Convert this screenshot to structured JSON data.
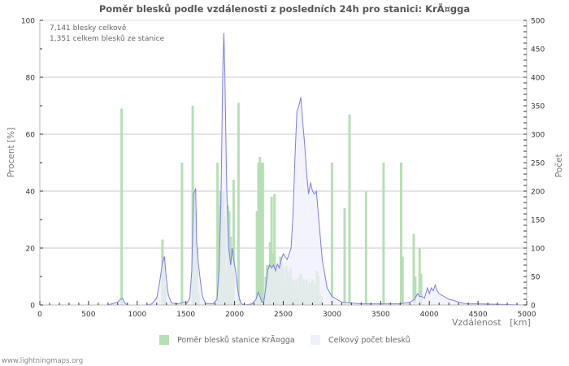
{
  "title": "Poměr blesků podle vzdálenosti z posledních 24h pro stanici: KrÃ¤gga",
  "info": {
    "line1": "7,141 blesky celkově",
    "line2": "1,351 celkem blesků ze stanice"
  },
  "axes": {
    "left_label": "Procent   [%]",
    "right_label": "Počet",
    "x_label": "Vzdálenost   [km]"
  },
  "legend": {
    "series1_label": "Poměr blesků stanice KrÃ¤gga",
    "series2_label": "Celkový počet blesků"
  },
  "footer": "www.lightningmaps.org",
  "colors": {
    "bar": "#b5e0b5",
    "bar_overlap": "#a3d0b0",
    "area_fill": "#efeffc",
    "area_line": "#7b7bea",
    "grid": "#c8c8c8",
    "title": "#555555"
  },
  "chart_data": {
    "type": "bar+area",
    "title": "Poměr blesků podle vzdálenosti z posledních 24h pro stanici: KrÃ¤gga",
    "xlabel": "Vzdálenost [km]",
    "ylabel_left": "Procent [%]",
    "ylabel_right": "Počet",
    "xlim": [
      0,
      5000
    ],
    "ylim_left": [
      0,
      100
    ],
    "ylim_right": [
      0,
      500
    ],
    "x_ticks": [
      0,
      500,
      1000,
      1500,
      2000,
      2500,
      3000,
      3500,
      4000,
      4500,
      5000
    ],
    "y_left_ticks": [
      0,
      20,
      40,
      60,
      80,
      100
    ],
    "y_right_ticks": [
      0,
      50,
      100,
      150,
      200,
      250,
      300,
      350,
      400,
      450,
      500
    ],
    "grid": true,
    "legend_position": "bottom",
    "series": [
      {
        "name": "Poměr blesků stanice KrÃ¤gga",
        "axis": "left",
        "kind": "bar",
        "x": [
          840,
          1260,
          1275,
          1290,
          1460,
          1570,
          1585,
          1600,
          1615,
          1630,
          1825,
          1840,
          1855,
          1870,
          1885,
          1900,
          1915,
          1930,
          1945,
          1960,
          1975,
          1990,
          2040,
          2055,
          2230,
          2245,
          2260,
          2275,
          2290,
          2320,
          2335,
          2350,
          2365,
          2380,
          2395,
          2410,
          2425,
          2440,
          2455,
          2470,
          2485,
          2500,
          2515,
          2530,
          2545,
          2560,
          2575,
          2590,
          2605,
          2620,
          2635,
          2650,
          2665,
          2680,
          2695,
          2710,
          2725,
          2740,
          2755,
          2770,
          2785,
          2800,
          2815,
          2830,
          2845,
          2860,
          2875,
          2890,
          3000,
          3130,
          3180,
          3350,
          3530,
          3710,
          3725,
          3840,
          3855,
          3900,
          3915
        ],
        "values": [
          69,
          23,
          17,
          7,
          50,
          70,
          40,
          33,
          20,
          4,
          50,
          35,
          40,
          37,
          40,
          31,
          12,
          35,
          33,
          24,
          20,
          44,
          71,
          2,
          33,
          50,
          52,
          50,
          50,
          10,
          14,
          14,
          22,
          38,
          18,
          39,
          13,
          14,
          11,
          17,
          15,
          13,
          8,
          14,
          12,
          10,
          13,
          7,
          9,
          6,
          9,
          5,
          10,
          11,
          8,
          9,
          6,
          9,
          5,
          8,
          7,
          9,
          8,
          7,
          12,
          10,
          4,
          3,
          50,
          34,
          67,
          40,
          50,
          50,
          17,
          25,
          10,
          20,
          11
        ]
      },
      {
        "name": "Celkový počet blesků",
        "axis": "right",
        "kind": "area",
        "x": [
          0,
          700,
          760,
          800,
          830,
          850,
          870,
          900,
          1100,
          1150,
          1200,
          1230,
          1260,
          1280,
          1300,
          1320,
          1350,
          1400,
          1450,
          1480,
          1510,
          1540,
          1560,
          1580,
          1600,
          1610,
          1630,
          1650,
          1670,
          1700,
          1780,
          1820,
          1840,
          1860,
          1870,
          1880,
          1890,
          1900,
          1910,
          1920,
          1940,
          1960,
          1975,
          1990,
          2010,
          2030,
          2050,
          2070,
          2100,
          2180,
          2220,
          2240,
          2260,
          2280,
          2300,
          2320,
          2340,
          2360,
          2380,
          2400,
          2420,
          2440,
          2460,
          2480,
          2500,
          2520,
          2540,
          2560,
          2580,
          2600,
          2620,
          2640,
          2660,
          2680,
          2700,
          2720,
          2740,
          2760,
          2780,
          2800,
          2820,
          2840,
          2860,
          2880,
          2900,
          2920,
          2950,
          3000,
          3100,
          3300,
          3500,
          3700,
          3800,
          3850,
          3880,
          3900,
          3920,
          3950,
          3980,
          4000,
          4020,
          4040,
          4060,
          4080,
          4100,
          4150,
          4200,
          4250,
          4300,
          4350,
          4400,
          4500,
          5000
        ],
        "values": [
          0,
          0,
          3,
          5,
          10,
          12,
          4,
          0,
          0,
          2,
          12,
          40,
          75,
          85,
          45,
          18,
          4,
          2,
          3,
          5,
          3,
          12,
          60,
          195,
          205,
          110,
          70,
          40,
          15,
          3,
          2,
          10,
          60,
          180,
          300,
          420,
          478,
          410,
          300,
          200,
          100,
          70,
          100,
          80,
          60,
          30,
          10,
          2,
          0,
          2,
          10,
          22,
          15,
          5,
          5,
          30,
          60,
          70,
          65,
          70,
          60,
          72,
          65,
          80,
          90,
          85,
          80,
          90,
          100,
          160,
          260,
          340,
          350,
          365,
          320,
          280,
          230,
          195,
          215,
          200,
          195,
          200,
          160,
          120,
          80,
          60,
          30,
          15,
          5,
          2,
          2,
          2,
          5,
          10,
          20,
          15,
          15,
          12,
          30,
          20,
          30,
          25,
          35,
          25,
          20,
          15,
          10,
          8,
          5,
          3,
          2,
          2,
          0
        ]
      }
    ]
  }
}
